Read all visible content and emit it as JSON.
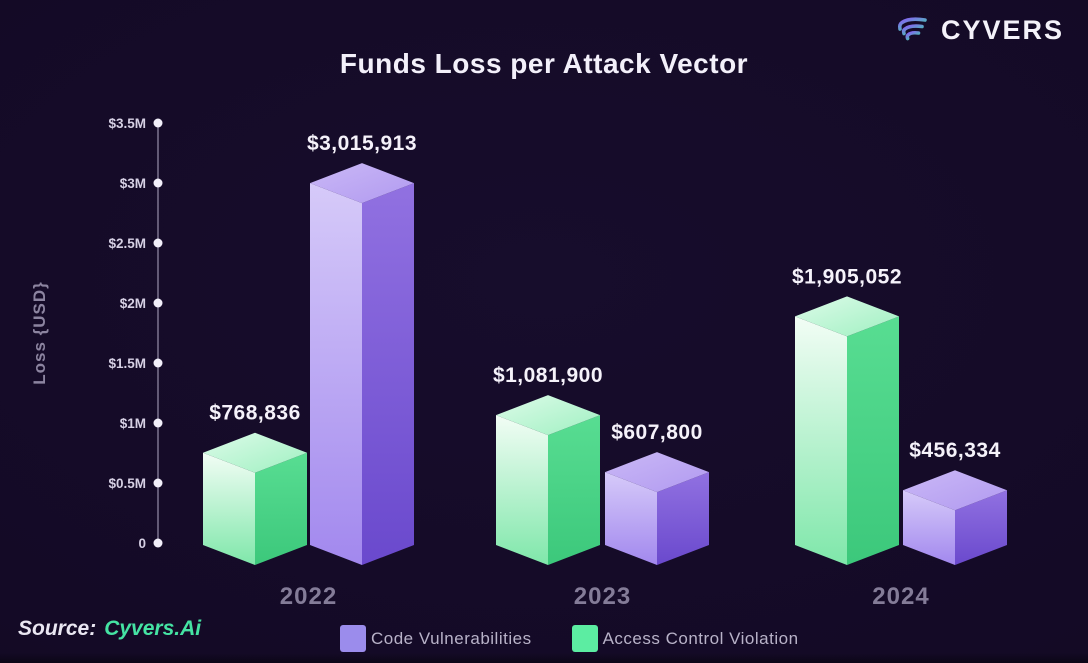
{
  "brand": {
    "name": "CYVERS"
  },
  "header": {
    "title": "Funds Loss per Attack Vector"
  },
  "source": {
    "prefix": "Source:",
    "name": "Cyvers.Ai"
  },
  "legend": {
    "items": [
      {
        "label": "Code Vulnerabilities",
        "color": "#9b8cec"
      },
      {
        "label": "Access Control Violation",
        "color": "#5ceda2"
      }
    ]
  },
  "chart_data": {
    "type": "bar",
    "variant": "grouped-3d-isometric-columns",
    "title": "Funds Loss per Attack Vector",
    "ylabel": "Loss {USD}",
    "xlabel": "",
    "categories": [
      "2022",
      "2023",
      "2024"
    ],
    "series": [
      {
        "name": "Access Control Violation",
        "palette": "green",
        "position_in_group": "left",
        "values": [
          768836,
          1081900,
          1905052
        ],
        "labels": [
          "$768,836",
          "$1,081,900",
          "$1,905,052"
        ]
      },
      {
        "name": "Code Vulnerabilities",
        "palette": "purple",
        "position_in_group": "right",
        "values": [
          3015913,
          607800,
          456334
        ],
        "labels": [
          "$3,015,913",
          "$607,800",
          "$456,334"
        ]
      }
    ],
    "y_ticks": [
      {
        "label": "$3.5M",
        "value": 3500000
      },
      {
        "label": "$3M",
        "value": 3000000
      },
      {
        "label": "$2.5M",
        "value": 2500000
      },
      {
        "label": "$2M",
        "value": 2000000
      },
      {
        "label": "$1.5M",
        "value": 1500000
      },
      {
        "label": "$1M",
        "value": 1000000
      },
      {
        "label": "$0.5M",
        "value": 500000
      },
      {
        "label": "0",
        "value": 0
      }
    ],
    "ylim": [
      0,
      3500000
    ],
    "grid": false,
    "legend_position": "bottom"
  },
  "colors": {
    "background": "#140a26",
    "title": "#f3f0fa",
    "value_label": "#f5f2fa",
    "category_label": "#847c98",
    "tick_label": "#d6d0e4",
    "axis_line": "#cfc8e2",
    "tick_dot": "#f2effa",
    "source_name": "#45e3a3",
    "legend_text": "#b8b2c8"
  }
}
